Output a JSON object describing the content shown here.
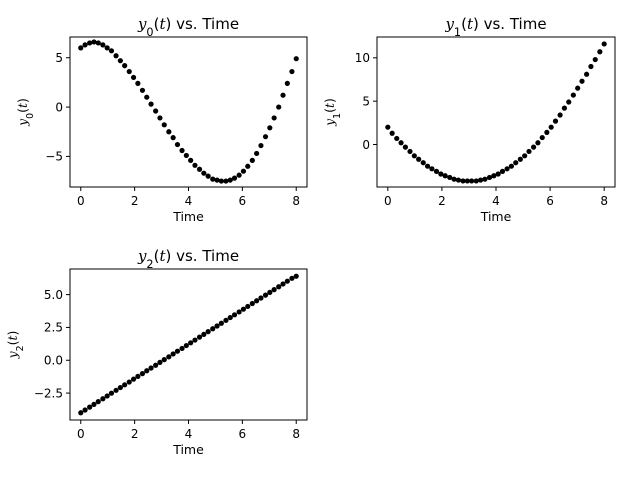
{
  "chart_data": [
    {
      "type": "scatter",
      "title": "$y_0(t)$ vs. Time",
      "title_parts": {
        "var": "y",
        "sub": "0",
        "rest": "(t) vs. Time"
      },
      "xlabel": "Time",
      "ylabel": "$y_0(t)$",
      "ylabel_parts": {
        "var": "y",
        "sub": "0",
        "rest": "(t)"
      },
      "xlim": [
        -0.4,
        8.4
      ],
      "ylim": [
        -8.1,
        7.1
      ],
      "xticks": [
        0,
        2,
        4,
        6,
        8
      ],
      "yticks": [
        -5,
        0,
        5
      ],
      "color": "#000000",
      "x": [
        0,
        0.16,
        0.33,
        0.49,
        0.65,
        0.82,
        0.98,
        1.14,
        1.31,
        1.47,
        1.63,
        1.8,
        1.96,
        2.12,
        2.29,
        2.45,
        2.61,
        2.78,
        2.94,
        3.1,
        3.27,
        3.43,
        3.59,
        3.76,
        3.92,
        4.08,
        4.24,
        4.41,
        4.57,
        4.73,
        4.9,
        5.06,
        5.22,
        5.39,
        5.55,
        5.71,
        5.88,
        6.04,
        6.2,
        6.37,
        6.53,
        6.69,
        6.86,
        7.02,
        7.18,
        7.35,
        7.51,
        7.67,
        7.84,
        8.0
      ],
      "y": [
        6.0,
        6.3,
        6.5,
        6.6,
        6.5,
        6.3,
        6.0,
        5.7,
        5.2,
        4.7,
        4.2,
        3.6,
        3.0,
        2.4,
        1.7,
        1.0,
        0.3,
        -0.4,
        -1.1,
        -1.8,
        -2.5,
        -3.1,
        -3.8,
        -4.4,
        -4.9,
        -5.4,
        -5.9,
        -6.3,
        -6.7,
        -7.0,
        -7.3,
        -7.4,
        -7.5,
        -7.5,
        -7.4,
        -7.2,
        -6.9,
        -6.5,
        -6.0,
        -5.4,
        -4.7,
        -3.9,
        -3.0,
        -2.1,
        -1.1,
        0.0,
        1.2,
        2.4,
        3.6,
        4.9
      ]
    },
    {
      "type": "scatter",
      "title": "$y_1(t)$ vs. Time",
      "title_parts": {
        "var": "y",
        "sub": "1",
        "rest": "(t) vs. Time"
      },
      "xlabel": "Time",
      "ylabel": "$y_1(t)$",
      "ylabel_parts": {
        "var": "y",
        "sub": "1",
        "rest": "(t)"
      },
      "xlim": [
        -0.4,
        8.4
      ],
      "ylim": [
        -4.9,
        12.4
      ],
      "xticks": [
        0,
        2,
        4,
        6,
        8
      ],
      "yticks": [
        0,
        5,
        10
      ],
      "color": "#000000",
      "x": [
        0,
        0.16,
        0.33,
        0.49,
        0.65,
        0.82,
        0.98,
        1.14,
        1.31,
        1.47,
        1.63,
        1.8,
        1.96,
        2.12,
        2.29,
        2.45,
        2.61,
        2.78,
        2.94,
        3.1,
        3.27,
        3.43,
        3.59,
        3.76,
        3.92,
        4.08,
        4.24,
        4.41,
        4.57,
        4.73,
        4.9,
        5.06,
        5.22,
        5.39,
        5.55,
        5.71,
        5.88,
        6.04,
        6.2,
        6.37,
        6.53,
        6.69,
        6.86,
        7.02,
        7.18,
        7.35,
        7.51,
        7.67,
        7.84,
        8.0
      ],
      "y": [
        2.0,
        1.3,
        0.7,
        0.2,
        -0.3,
        -0.8,
        -1.3,
        -1.7,
        -2.1,
        -2.5,
        -2.8,
        -3.1,
        -3.4,
        -3.6,
        -3.8,
        -4.0,
        -4.1,
        -4.2,
        -4.2,
        -4.2,
        -4.2,
        -4.1,
        -4.0,
        -3.8,
        -3.6,
        -3.4,
        -3.1,
        -2.8,
        -2.5,
        -2.1,
        -1.7,
        -1.3,
        -0.8,
        -0.3,
        0.2,
        0.8,
        1.4,
        2.0,
        2.7,
        3.4,
        4.2,
        4.9,
        5.7,
        6.5,
        7.3,
        8.1,
        9.0,
        9.8,
        10.7,
        11.6
      ]
    },
    {
      "type": "scatter",
      "title": "$y_2(t)$ vs. Time",
      "title_parts": {
        "var": "y",
        "sub": "2",
        "rest": "(t) vs. Time"
      },
      "xlabel": "Time",
      "ylabel": "$y_2(t)$",
      "ylabel_parts": {
        "var": "y",
        "sub": "2",
        "rest": "(t)"
      },
      "xlim": [
        -0.4,
        8.4
      ],
      "ylim": [
        -4.55,
        6.95
      ],
      "xticks": [
        0,
        2,
        4,
        6,
        8
      ],
      "yticks": [
        -2.5,
        0.0,
        2.5,
        5.0
      ],
      "ytick_labels": [
        "−2.5",
        "0.0",
        "2.5",
        "5.0"
      ],
      "color": "#000000",
      "x": [
        0,
        0.16,
        0.33,
        0.49,
        0.65,
        0.82,
        0.98,
        1.14,
        1.31,
        1.47,
        1.63,
        1.8,
        1.96,
        2.12,
        2.29,
        2.45,
        2.61,
        2.78,
        2.94,
        3.1,
        3.27,
        3.43,
        3.59,
        3.76,
        3.92,
        4.08,
        4.24,
        4.41,
        4.57,
        4.73,
        4.9,
        5.06,
        5.22,
        5.39,
        5.55,
        5.71,
        5.88,
        6.04,
        6.2,
        6.37,
        6.53,
        6.69,
        6.86,
        7.02,
        7.18,
        7.35,
        7.51,
        7.67,
        7.84,
        8.0
      ],
      "y": [
        -4.0,
        -3.79,
        -3.57,
        -3.36,
        -3.15,
        -2.93,
        -2.72,
        -2.51,
        -2.29,
        -2.08,
        -1.87,
        -1.66,
        -1.44,
        -1.23,
        -1.02,
        -0.8,
        -0.59,
        -0.38,
        -0.16,
        0.05,
        0.26,
        0.48,
        0.69,
        0.9,
        1.12,
        1.33,
        1.54,
        1.76,
        1.97,
        2.18,
        2.4,
        2.61,
        2.82,
        3.04,
        3.25,
        3.46,
        3.68,
        3.89,
        4.1,
        4.32,
        4.53,
        4.74,
        4.96,
        5.17,
        5.38,
        5.6,
        5.81,
        6.02,
        6.24,
        6.4
      ]
    }
  ]
}
